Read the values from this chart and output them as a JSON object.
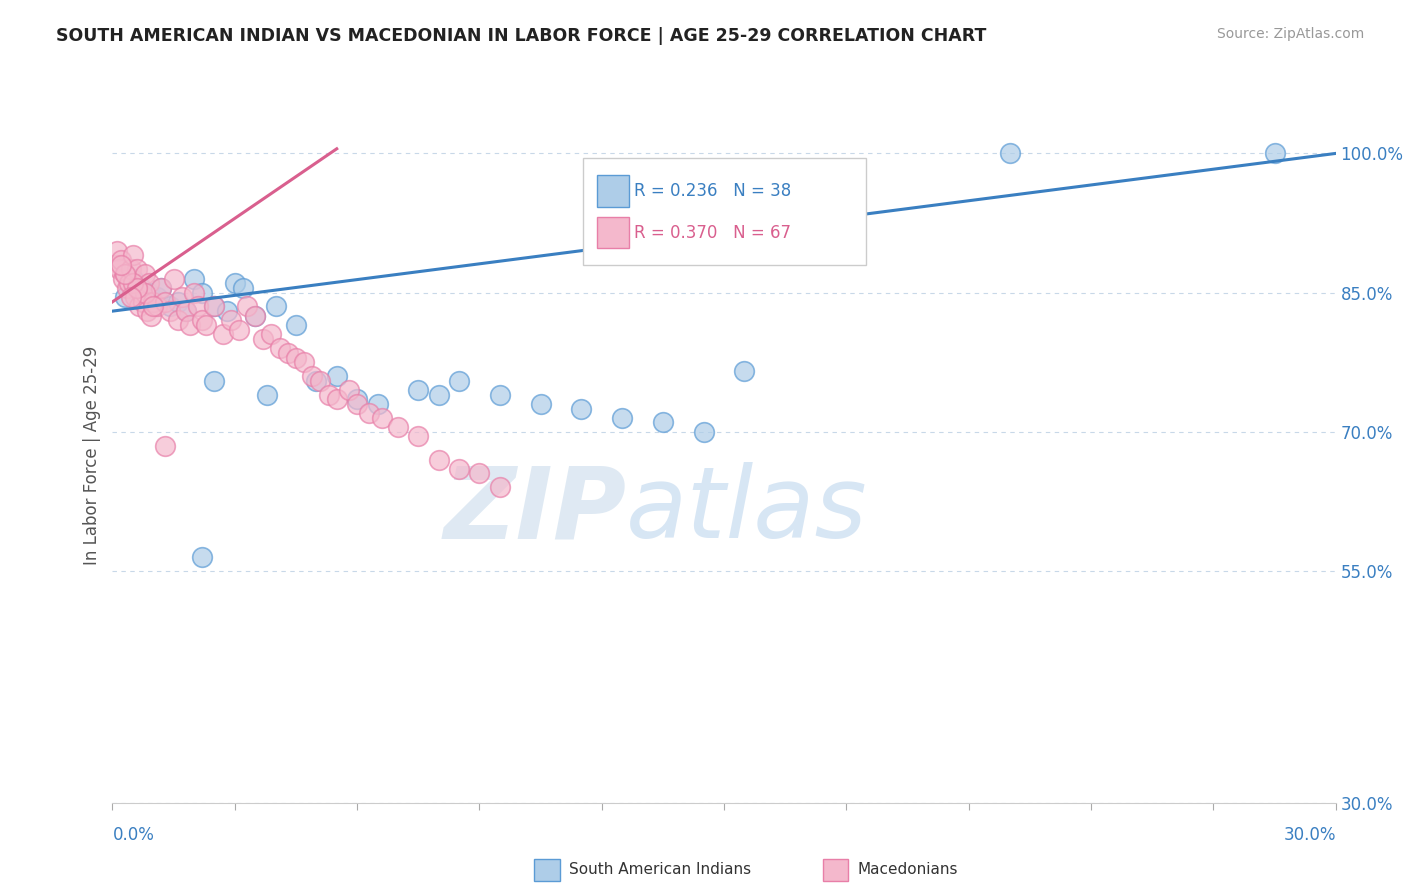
{
  "title": "SOUTH AMERICAN INDIAN VS MACEDONIAN IN LABOR FORCE | AGE 25-29 CORRELATION CHART",
  "source": "Source: ZipAtlas.com",
  "ylabel": "In Labor Force | Age 25-29",
  "xmin": 0.0,
  "xmax": 30.0,
  "ymin": 30.0,
  "ymax": 105.0,
  "ytick_vals": [
    100.0,
    85.0,
    70.0,
    55.0,
    30.0
  ],
  "ytick_labels": [
    "100.0%",
    "85.0%",
    "70.0%",
    "55.0%",
    "30.0%"
  ],
  "legend1_r": "R = 0.236",
  "legend1_n": "N = 38",
  "legend2_r": "R = 0.370",
  "legend2_n": "N = 67",
  "blue_fill": "#aecde8",
  "blue_edge": "#5b9bd5",
  "pink_fill": "#f4b8cc",
  "pink_edge": "#e87fa8",
  "blue_line": "#3a7fc1",
  "pink_line": "#d95f8e",
  "text_blue": "#3a7fc1",
  "text_pink": "#d95f8e",
  "grid_color": "#c8d8e8",
  "watermark_zip": "ZIP",
  "watermark_atlas": "atlas",
  "blue_scatter_x": [
    0.3,
    0.5,
    0.7,
    0.9,
    1.0,
    1.1,
    1.2,
    1.4,
    1.6,
    1.8,
    2.0,
    2.2,
    2.5,
    2.8,
    3.0,
    3.2,
    3.5,
    4.0,
    4.5,
    5.5,
    6.5,
    7.5,
    8.5,
    9.5,
    10.5,
    11.5,
    12.5,
    13.5,
    14.5,
    15.5,
    2.5,
    3.8,
    5.0,
    6.0,
    8.0,
    2.2,
    22.0,
    28.5
  ],
  "blue_scatter_y": [
    84.5,
    86.5,
    85.5,
    85.0,
    84.0,
    84.5,
    85.5,
    83.5,
    84.0,
    83.0,
    86.5,
    85.0,
    83.5,
    83.0,
    86.0,
    85.5,
    82.5,
    83.5,
    81.5,
    76.0,
    73.0,
    74.5,
    75.5,
    74.0,
    73.0,
    72.5,
    71.5,
    71.0,
    70.0,
    76.5,
    75.5,
    74.0,
    75.5,
    73.5,
    74.0,
    56.5,
    100.0,
    100.0
  ],
  "pink_scatter_x": [
    0.05,
    0.1,
    0.15,
    0.2,
    0.25,
    0.3,
    0.35,
    0.4,
    0.45,
    0.5,
    0.55,
    0.6,
    0.65,
    0.7,
    0.75,
    0.8,
    0.85,
    0.9,
    0.95,
    1.0,
    1.1,
    1.2,
    1.3,
    1.4,
    1.5,
    1.6,
    1.7,
    1.8,
    1.9,
    2.0,
    2.1,
    2.2,
    2.3,
    2.5,
    2.7,
    2.9,
    3.1,
    3.3,
    3.5,
    3.7,
    3.9,
    4.1,
    4.3,
    4.5,
    4.7,
    4.9,
    5.1,
    5.3,
    5.5,
    5.8,
    6.0,
    6.3,
    6.6,
    7.0,
    7.5,
    8.0,
    8.5,
    9.0,
    9.5,
    1.3,
    0.8,
    1.0,
    0.5,
    0.6,
    0.45,
    0.3,
    0.2
  ],
  "pink_scatter_y": [
    88.0,
    89.5,
    87.5,
    88.5,
    86.5,
    87.0,
    85.5,
    86.0,
    87.5,
    89.0,
    84.5,
    87.5,
    83.5,
    85.0,
    84.0,
    87.0,
    83.0,
    86.0,
    82.5,
    84.0,
    83.5,
    85.5,
    84.0,
    83.0,
    86.5,
    82.0,
    84.5,
    83.0,
    81.5,
    85.0,
    83.5,
    82.0,
    81.5,
    83.5,
    80.5,
    82.0,
    81.0,
    83.5,
    82.5,
    80.0,
    80.5,
    79.0,
    78.5,
    78.0,
    77.5,
    76.0,
    75.5,
    74.0,
    73.5,
    74.5,
    73.0,
    72.0,
    71.5,
    70.5,
    69.5,
    67.0,
    66.0,
    65.5,
    64.0,
    68.5,
    85.0,
    83.5,
    86.0,
    85.5,
    84.5,
    87.0,
    88.0
  ],
  "blue_regline_x": [
    0.0,
    30.0
  ],
  "blue_regline_y": [
    83.0,
    100.0
  ],
  "pink_regline_x": [
    0.0,
    5.5
  ],
  "pink_regline_y": [
    84.0,
    100.5
  ]
}
